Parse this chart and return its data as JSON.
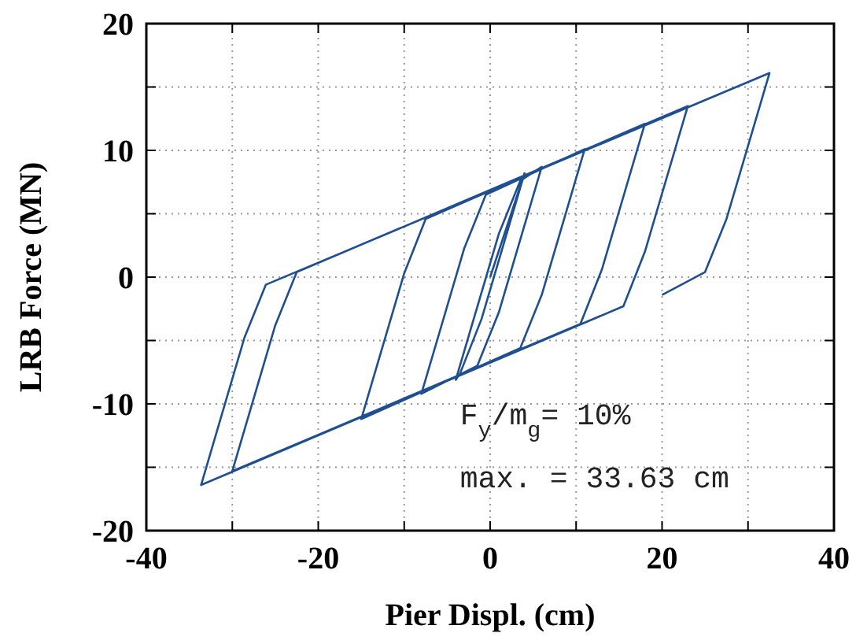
{
  "chart_data": {
    "type": "line",
    "xlabel": "Pier Displ. (cm)",
    "ylabel": "LRB Force (MN)",
    "xlim": [
      -40,
      40
    ],
    "ylim": [
      -20,
      20
    ],
    "xticks": [
      -40,
      {
        "value": -30,
        "label": null
      },
      -20,
      {
        "value": -10,
        "label": null
      },
      0,
      {
        "value": 10,
        "label": null
      },
      20,
      {
        "value": 30,
        "label": null
      },
      40
    ],
    "yticks": [
      -20,
      {
        "value": -15,
        "label": null
      },
      -10,
      {
        "value": -5,
        "label": null
      },
      0,
      {
        "value": 5,
        "label": null
      },
      10,
      {
        "value": 15,
        "label": null
      },
      20
    ],
    "grid": true,
    "marker": "none",
    "line_style": "solid",
    "annotations": [
      "F$_{y}$/m$_{g}$= 10%",
      "max. = 33.63 cm"
    ],
    "series": [
      {
        "color": "#1f4f8f",
        "x": [
          0,
          4,
          -1,
          -3.5,
          -4,
          1,
          3.5,
          6,
          1,
          -1.5,
          -8,
          -3,
          -0.5,
          11,
          6,
          3.5,
          -15,
          -10,
          -7.5,
          18,
          13,
          10.5,
          -30,
          -25,
          -22.5,
          23,
          18,
          15.5,
          -33.63,
          -28.6,
          -26.1,
          32.5,
          27.5,
          25,
          20
        ],
        "values": [
          0,
          8.2,
          -3.3,
          -7.6,
          -8.1,
          3.4,
          7.6,
          8.7,
          -2.8,
          -7,
          -9.2,
          2.3,
          6.5,
          10.1,
          -1.4,
          -5.6,
          -11.2,
          0.3,
          4.6,
          12.1,
          0.6,
          -3.7,
          -15.3,
          -3.8,
          0.4,
          13.5,
          2,
          -2.3,
          -16.4,
          -4.8,
          -0.6,
          16.1,
          4.6,
          0.4,
          -1.4
        ]
      }
    ]
  }
}
